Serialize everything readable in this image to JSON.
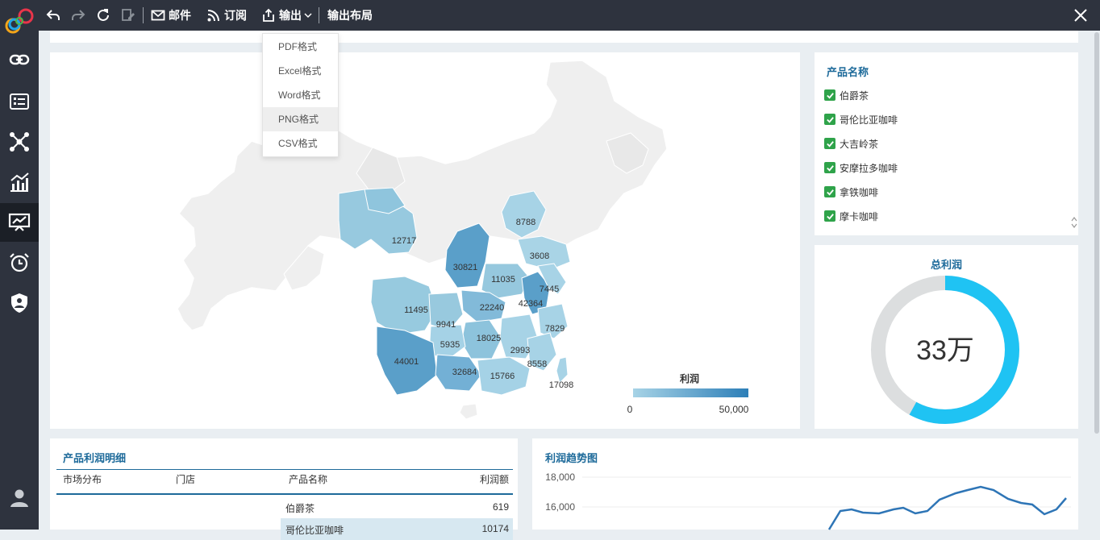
{
  "toolbar": {
    "mail_label": "邮件",
    "subscribe_label": "订阅",
    "export_label": "输出",
    "export_layout_label": "输出布局"
  },
  "export_menu": {
    "items": [
      "PDF格式",
      "Excel格式",
      "Word格式",
      "PNG格式",
      "CSV格式"
    ],
    "hovered": "PNG格式"
  },
  "map": {
    "region_values": [
      "8788",
      "12717",
      "30821",
      "3608",
      "11035",
      "7445",
      "11495",
      "22240",
      "42364",
      "9941",
      "18025",
      "7829",
      "5935",
      "2993",
      "8558",
      "44001",
      "32684",
      "15766",
      "17098"
    ],
    "legend_title": "利润",
    "legend_min": "0",
    "legend_max": "50,000",
    "colors": {
      "light": "#a7d3e6",
      "dark": "#2d7fb8",
      "base": "#efefef"
    }
  },
  "filter": {
    "title": "产品名称",
    "items": [
      "伯爵茶",
      "哥伦比亚咖啡",
      "大吉岭茶",
      "安摩拉多咖啡",
      "拿铁咖啡",
      "摩卡咖啡"
    ]
  },
  "kpi": {
    "title": "总利润",
    "value": "33万",
    "progress": 0.58,
    "colors": {
      "fill": "#1fc3f3",
      "track": "#dcdedf"
    }
  },
  "table": {
    "title": "产品利润明细",
    "headers": [
      "市场分布",
      "门店",
      "产品名称",
      "利润额"
    ],
    "rows": [
      {
        "product": "伯爵茶",
        "profit": "619"
      },
      {
        "product": "哥伦比亚咖啡",
        "profit": "10174"
      }
    ]
  },
  "trend": {
    "title": "利润趋势图",
    "y_ticks": [
      "18,000",
      "16,000"
    ],
    "line_color": "#2e75b6"
  }
}
